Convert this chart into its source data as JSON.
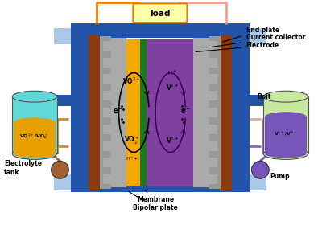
{
  "bg_color": "#ffffff",
  "colors": {
    "blue_frame": "#2255aa",
    "light_blue_side": "#aac8e8",
    "brown_endplate": "#8B3A10",
    "gray_cc": "#999999",
    "gray_bipolar": "#aaaaaa",
    "orange_electrode": "#f5a800",
    "purple_electrode": "#8040a0",
    "green_membrane": "#1a7a1a",
    "orange_tank_body": "#e8a000",
    "cyan_tank": "#60d8d8",
    "purple_tank_body": "#7755bb",
    "light_green_tank": "#c8e8a0",
    "load_yellow": "#ffffaa",
    "load_border": "#e08000",
    "wire_orange": "#f08000",
    "wire_pink": "#f0a090",
    "dashed_orange": "#f08000",
    "dashed_pink": "#f0a0a0",
    "dashed_purple": "#9060c0",
    "pump_brown": "#a06030"
  },
  "labels": {
    "load": "load",
    "end_plate": "End plate",
    "current_collector": "Current collector",
    "electrode": "Electrode",
    "bolt": "Bolt",
    "membrane": "Membrane",
    "bipolar_plate": "Bipolar plate",
    "electrolyte_tank": "Electrolyte\ntank",
    "pump": "Pump"
  }
}
